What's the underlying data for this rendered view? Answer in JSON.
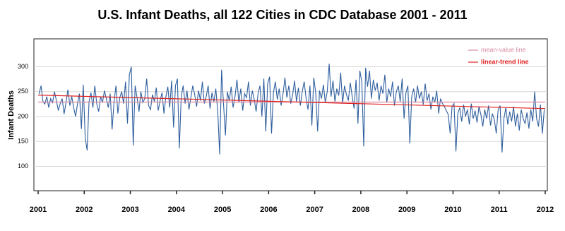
{
  "chart_data": {
    "type": "line",
    "title": "U.S. Infant Deaths, all 122 Cities in CDC Database 2001 - 2011",
    "y_label": "Infant Deaths",
    "color": "#2f5f9e",
    "xlim": [
      2001,
      2012
    ],
    "xticks": [
      2001,
      2002,
      2003,
      2004,
      2005,
      2006,
      2007,
      2008,
      2009,
      2010,
      2011,
      2012
    ],
    "ylim": [
      51,
      356
    ],
    "yticks": [
      100,
      150,
      200,
      250,
      300
    ],
    "grid": true,
    "legend": "top-right",
    "x": [
      2001.021,
      2001.063,
      2001.104,
      2001.146,
      2001.188,
      2001.229,
      2001.271,
      2001.313,
      2001.354,
      2001.396,
      2001.438,
      2001.479,
      2001.521,
      2001.563,
      2001.604,
      2001.646,
      2001.688,
      2001.729,
      2001.771,
      2001.813,
      2001.854,
      2001.896,
      2001.938,
      2001.979,
      2002.021,
      2002.063,
      2002.104,
      2002.146,
      2002.188,
      2002.229,
      2002.271,
      2002.313,
      2002.354,
      2002.396,
      2002.438,
      2002.479,
      2002.521,
      2002.563,
      2002.604,
      2002.646,
      2002.688,
      2002.729,
      2002.771,
      2002.813,
      2002.854,
      2002.896,
      2002.938,
      2002.979,
      2003.021,
      2003.063,
      2003.104,
      2003.146,
      2003.188,
      2003.229,
      2003.271,
      2003.313,
      2003.354,
      2003.396,
      2003.438,
      2003.479,
      2003.521,
      2003.563,
      2003.604,
      2003.646,
      2003.688,
      2003.729,
      2003.771,
      2003.813,
      2003.854,
      2003.896,
      2003.938,
      2003.979,
      2004.021,
      2004.063,
      2004.104,
      2004.146,
      2004.188,
      2004.229,
      2004.271,
      2004.313,
      2004.354,
      2004.396,
      2004.438,
      2004.479,
      2004.521,
      2004.563,
      2004.604,
      2004.646,
      2004.688,
      2004.729,
      2004.771,
      2004.813,
      2004.854,
      2004.896,
      2004.938,
      2004.979,
      2005.021,
      2005.063,
      2005.104,
      2005.146,
      2005.188,
      2005.229,
      2005.271,
      2005.313,
      2005.354,
      2005.396,
      2005.438,
      2005.479,
      2005.521,
      2005.563,
      2005.604,
      2005.646,
      2005.688,
      2005.729,
      2005.771,
      2005.813,
      2005.854,
      2005.896,
      2005.938,
      2005.979,
      2006.021,
      2006.063,
      2006.104,
      2006.146,
      2006.188,
      2006.229,
      2006.271,
      2006.313,
      2006.354,
      2006.396,
      2006.438,
      2006.479,
      2006.521,
      2006.563,
      2006.604,
      2006.646,
      2006.688,
      2006.729,
      2006.771,
      2006.813,
      2006.854,
      2006.896,
      2006.938,
      2006.979,
      2007.021,
      2007.063,
      2007.104,
      2007.146,
      2007.188,
      2007.229,
      2007.271,
      2007.313,
      2007.354,
      2007.396,
      2007.438,
      2007.479,
      2007.521,
      2007.563,
      2007.604,
      2007.646,
      2007.688,
      2007.729,
      2007.771,
      2007.813,
      2007.854,
      2007.896,
      2007.938,
      2007.979,
      2008.021,
      2008.063,
      2008.104,
      2008.146,
      2008.188,
      2008.229,
      2008.271,
      2008.313,
      2008.354,
      2008.396,
      2008.438,
      2008.479,
      2008.521,
      2008.563,
      2008.604,
      2008.646,
      2008.688,
      2008.729,
      2008.771,
      2008.813,
      2008.854,
      2008.896,
      2008.938,
      2008.979,
      2009.021,
      2009.063,
      2009.104,
      2009.146,
      2009.188,
      2009.229,
      2009.271,
      2009.313,
      2009.354,
      2009.396,
      2009.438,
      2009.479,
      2009.521,
      2009.563,
      2009.604,
      2009.646,
      2009.688,
      2009.729,
      2009.771,
      2009.813,
      2009.854,
      2009.896,
      2009.938,
      2009.979,
      2010.021,
      2010.063,
      2010.104,
      2010.146,
      2010.188,
      2010.229,
      2010.271,
      2010.313,
      2010.354,
      2010.396,
      2010.438,
      2010.479,
      2010.521,
      2010.563,
      2010.604,
      2010.646,
      2010.688,
      2010.729,
      2010.771,
      2010.813,
      2010.854,
      2010.896,
      2010.938,
      2010.979,
      2011.021,
      2011.063,
      2011.104,
      2011.146,
      2011.188,
      2011.229,
      2011.271,
      2011.313,
      2011.354,
      2011.396,
      2011.438,
      2011.479,
      2011.521,
      2011.563,
      2011.604,
      2011.646,
      2011.688,
      2011.729,
      2011.771,
      2011.813,
      2011.854,
      2011.896,
      2011.938,
      2011.979
    ],
    "values": [
      245,
      262,
      230,
      225,
      240,
      218,
      236,
      228,
      250,
      232,
      212,
      226,
      236,
      205,
      228,
      254,
      222,
      240,
      218,
      200,
      226,
      246,
      175,
      264,
      158,
      132,
      230,
      248,
      218,
      262,
      226,
      210,
      240,
      228,
      252,
      236,
      218,
      246,
      174,
      228,
      262,
      206,
      238,
      250,
      226,
      270,
      186,
      284,
      300,
      142,
      262,
      238,
      210,
      250,
      228,
      236,
      276,
      222,
      214,
      244,
      230,
      258,
      212,
      232,
      248,
      206,
      240,
      260,
      218,
      272,
      178,
      262,
      276,
      136,
      240,
      262,
      226,
      252,
      214,
      238,
      262,
      244,
      220,
      252,
      232,
      270,
      226,
      240,
      262,
      216,
      248,
      230,
      256,
      210,
      124,
      294,
      226,
      162,
      250,
      232,
      260,
      218,
      240,
      274,
      228,
      256,
      212,
      246,
      238,
      270,
      222,
      252,
      234,
      210,
      246,
      262,
      200,
      276,
      170,
      266,
      280,
      166,
      248,
      270,
      234,
      256,
      222,
      246,
      278,
      238,
      262,
      226,
      244,
      272,
      230,
      258,
      222,
      250,
      270,
      236,
      214,
      262,
      182,
      278,
      248,
      170,
      252,
      236,
      264,
      228,
      250,
      306,
      240,
      272,
      230,
      256,
      242,
      288,
      226,
      262,
      244,
      232,
      268,
      240,
      216,
      274,
      186,
      292,
      270,
      140,
      298,
      260,
      292,
      236,
      274,
      252,
      268,
      232,
      262,
      246,
      284,
      228,
      256,
      240,
      270,
      222,
      250,
      262,
      230,
      276,
      196,
      248,
      262,
      146,
      240,
      256,
      228,
      262,
      236,
      250,
      224,
      266,
      232,
      246,
      214,
      240,
      228,
      252,
      206,
      236,
      226,
      220,
      212,
      204,
      166,
      220,
      226,
      130,
      206,
      218,
      190,
      224,
      200,
      214,
      184,
      226,
      196,
      212,
      188,
      220,
      204,
      180,
      214,
      196,
      222,
      182,
      206,
      194,
      166,
      214,
      222,
      128,
      196,
      218,
      184,
      210,
      190,
      220,
      180,
      206,
      172,
      214,
      196,
      186,
      208,
      176,
      214,
      190,
      250,
      196,
      180,
      224,
      166,
      214
    ],
    "reference_lines": [
      {
        "name": "mean-value line",
        "color": "#d98ca0",
        "x": [
          2001,
          2012
        ],
        "values": [
          229,
          229
        ]
      },
      {
        "name": "linear-trend line",
        "color": "#e02020",
        "x": [
          2001,
          2012
        ],
        "values": [
          243,
          216
        ]
      }
    ]
  }
}
